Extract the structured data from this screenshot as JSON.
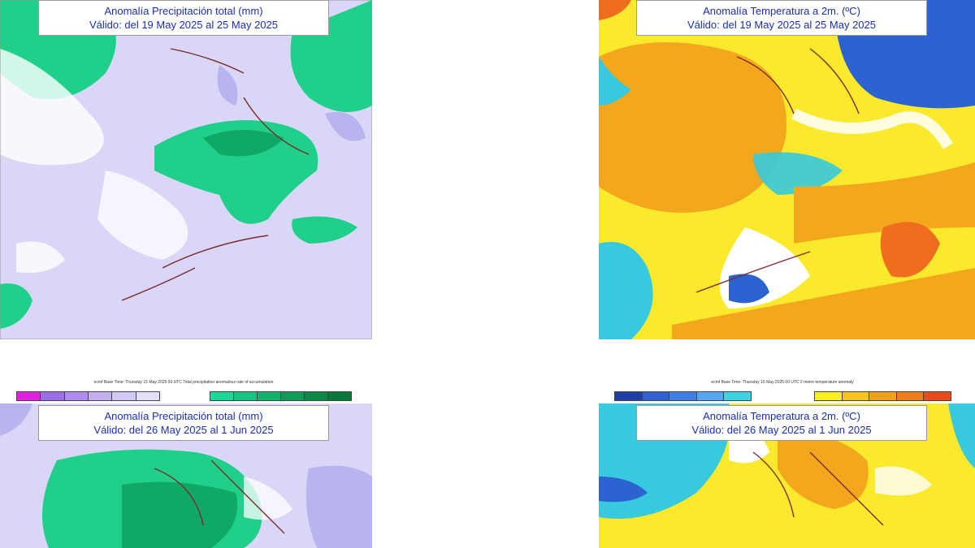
{
  "panels": [
    {
      "id": "precip-week1",
      "variable": "precipitation",
      "title_line1": "Anomalía Precipitación total (mm)",
      "title_line2": "Válido: del 19 May 2025 al 25 May 2025"
    },
    {
      "id": "temp-week1",
      "variable": "temperature",
      "title_line1": "Anomalía Temperatura a 2m. (ºC)",
      "title_line2": "Válido: del 19 May 2025 al 25 May 2025"
    },
    {
      "id": "precip-week2",
      "variable": "precipitation",
      "title_line1": "Anomalía Precipitación total (mm)",
      "title_line2": "Válido: del 26 May 2025 al 1 Jun 2025"
    },
    {
      "id": "temp-week2",
      "variable": "temperature",
      "title_line1": "Anomalía Temperatura a 2m. (ºC)",
      "title_line2": "Válido: del 26 May 2025 al 1 Jun 2025"
    }
  ],
  "legends": {
    "precipitation": {
      "caption": "ecmf Base Time: Thursday 15 May 2025 00 UTC Total precipitation anomalous rate of accumulation",
      "negative_colors": [
        "#e51ee0",
        "#9b6fe8",
        "#b18cf0",
        "#c2b0f2",
        "#d3c8f5",
        "#e4def8"
      ],
      "positive_colors": [
        "#16d99a",
        "#14c683",
        "#12b26f",
        "#0f9d5c",
        "#0c8749",
        "#0a7538"
      ]
    },
    "temperature": {
      "caption": "ecmf Base Time: Thursday 15 May 2025 00 UTC 2 metre temperature anomaly",
      "negative_colors": [
        "#1d3fa5",
        "#2f62cf",
        "#3d7fe3",
        "#54a6ef",
        "#3ed3e2"
      ],
      "positive_colors": [
        "#f9f11f",
        "#f5c21a",
        "#f2a019",
        "#f07c1c",
        "#ec4b1e"
      ]
    }
  },
  "colors": {
    "precip_background": "#d9d6f7",
    "precip_dry_strong": "#b8b4f0",
    "precip_wet": "#1fcf8a",
    "precip_wet_strong": "#10a866",
    "temp_cold": "#37c9de",
    "temp_cold_strong": "#2b63d0",
    "temp_warm": "#fae92c",
    "temp_warm_strong": "#f3a71c",
    "temp_hot": "#ee6d1e",
    "neutral": "#ffffff",
    "coastline": "#7a2b2b",
    "title_text": "#1a2fb8"
  }
}
